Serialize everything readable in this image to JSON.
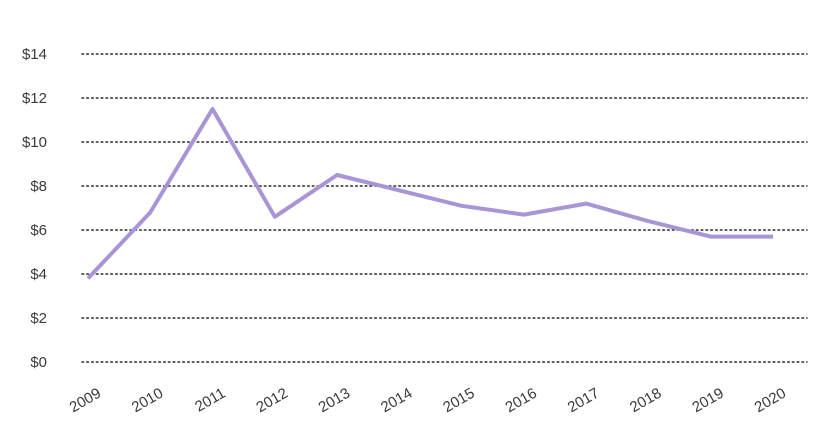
{
  "chart_data": {
    "type": "line",
    "title": "",
    "xlabel": "",
    "ylabel": "",
    "x": [
      "2009",
      "2010",
      "2011",
      "2012",
      "2013",
      "2014",
      "2015",
      "2016",
      "2017",
      "2018",
      "2019",
      "2020"
    ],
    "series": [
      {
        "values": [
          3.8,
          6.8,
          11.5,
          6.6,
          8.5,
          7.8,
          7.1,
          6.7,
          7.2,
          6.4,
          5.7,
          5.7
        ],
        "color": "#a995d6"
      }
    ],
    "ylim": [
      0,
      14
    ],
    "yticks": [
      0,
      2,
      4,
      6,
      8,
      10,
      12,
      14
    ],
    "ytick_labels": [
      "$0",
      "$2",
      "$4",
      "$6",
      "$8",
      "$10",
      "$12",
      "$14"
    ],
    "grid": true,
    "grid_style": "dotted",
    "legend": "none"
  }
}
